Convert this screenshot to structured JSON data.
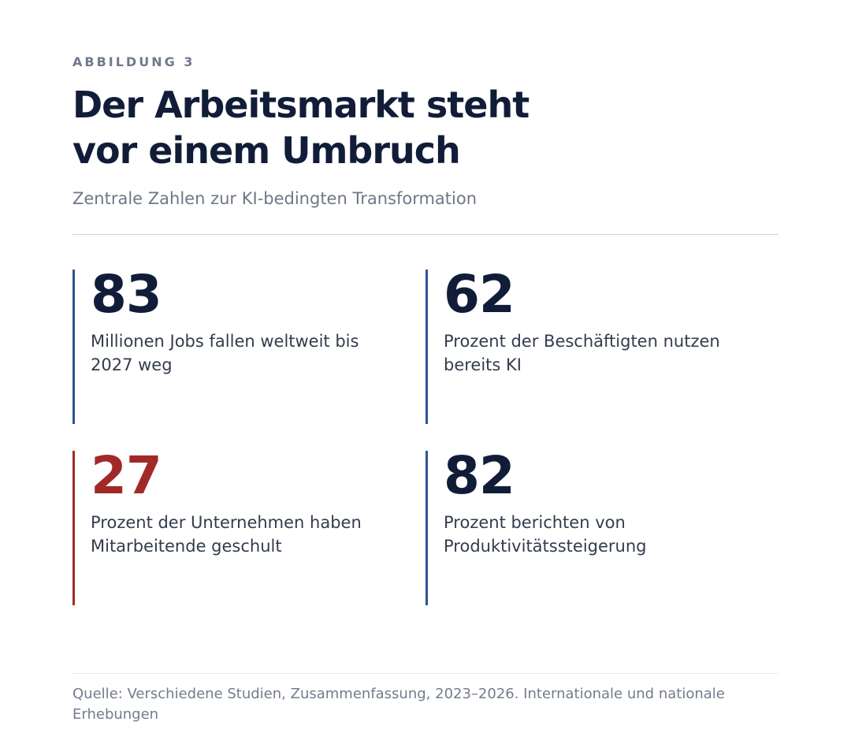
{
  "header": {
    "eyebrow": "ABBILDUNG 3",
    "title_line1": "Der Arbeitsmarkt steht",
    "title_line2": "vor einem Umbruch",
    "subtitle": "Zentrale Zahlen zur KI-bedingten Transformation"
  },
  "stats": [
    {
      "value": "83",
      "label": "Millionen Jobs fallen weltweit bis 2027 weg",
      "accent_color": "#2c5593"
    },
    {
      "value": "62",
      "label": "Prozent der Beschäftigten nutzen bereits KI",
      "accent_color": "#2c5593"
    },
    {
      "value": "27",
      "label": "Prozent der Unternehmen haben Mitarbeitende geschult",
      "accent_color": "#a12a28"
    },
    {
      "value": "82",
      "label": "Prozent berichten von Produktivitätssteigerung",
      "accent_color": "#2c5593"
    }
  ],
  "footer": {
    "source": "Quelle: Verschiedene Studien, Zusammenfassung, 2023–2026. Internationale und nationale Erhebungen"
  }
}
